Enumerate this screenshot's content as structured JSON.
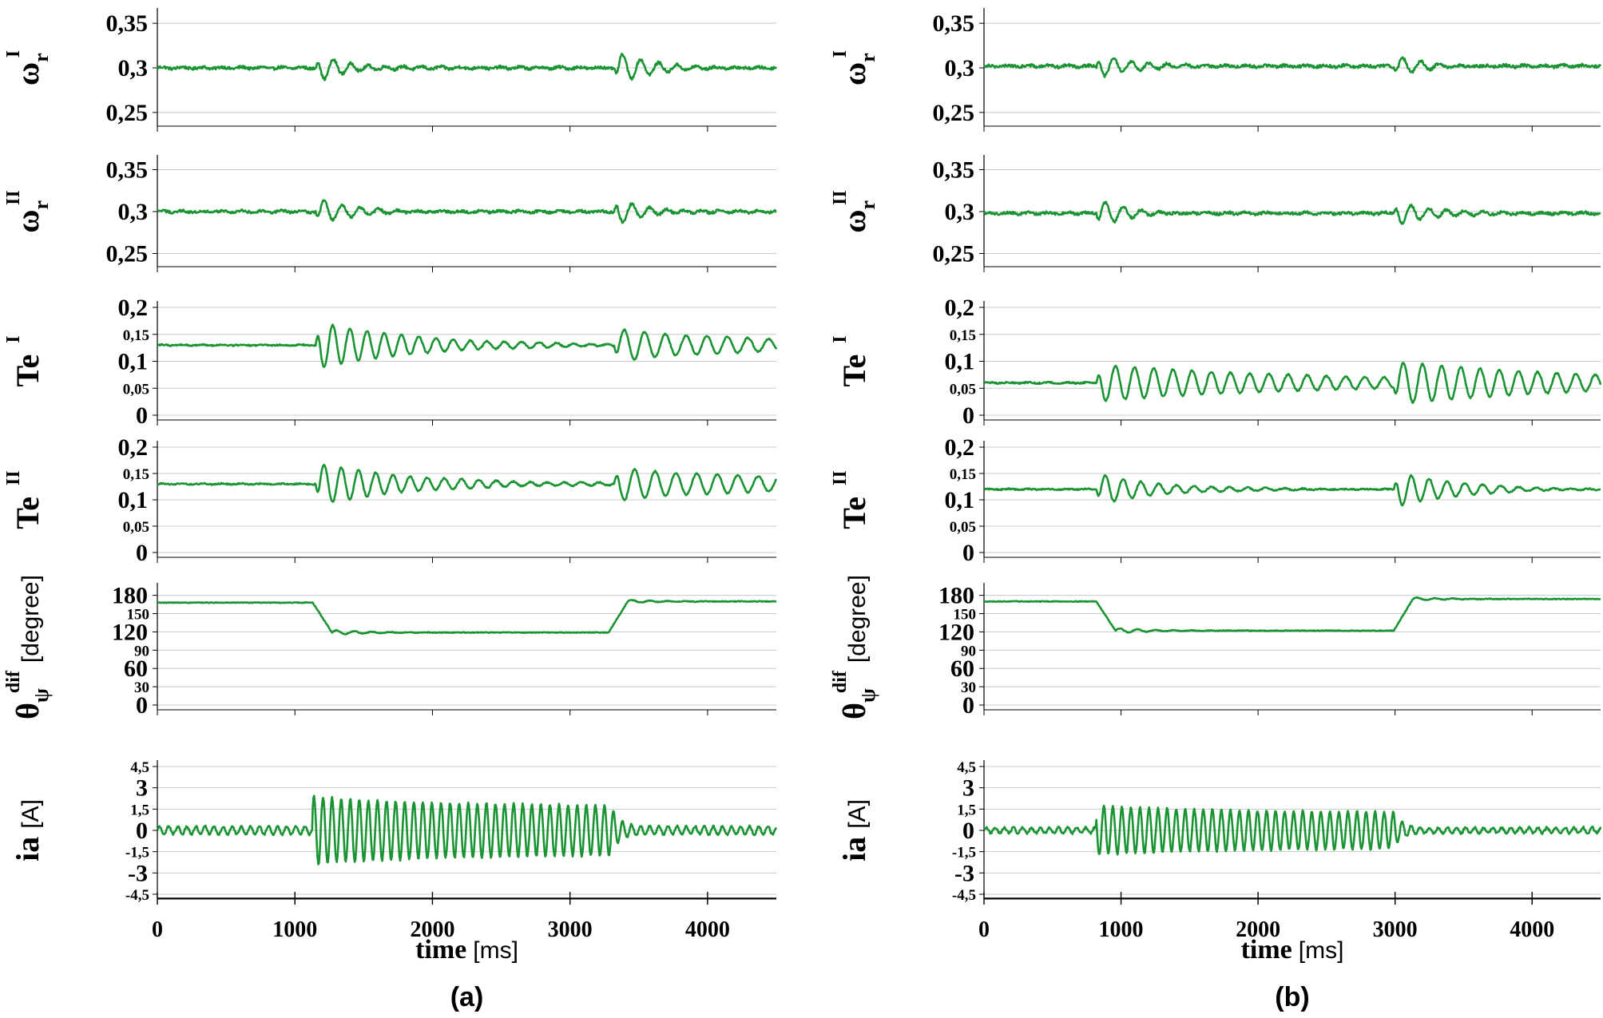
{
  "chart_data": [
    {
      "id": "a",
      "type": "line",
      "caption": "(a)",
      "xlabel": "time",
      "xunit": "[ms]",
      "xlim": [
        0,
        4500
      ],
      "xticks": [
        "0",
        "1000",
        "2000",
        "3000",
        "4000"
      ],
      "line_color": "#1a9433",
      "subplots": [
        {
          "name": "omega-r-I",
          "ylabel": {
            "main": "ω",
            "sub": "r",
            "sup": "I"
          },
          "ylim": [
            0.24,
            0.36
          ],
          "ticks": [
            {
              "v": 0.35,
              "t": "0,35",
              "size": "big"
            },
            {
              "v": 0.3,
              "t": "0,3",
              "size": "big"
            },
            {
              "v": 0.25,
              "t": "0,25",
              "size": "big"
            }
          ],
          "series": {
            "name": "ωrI",
            "baseline": 0.3,
            "noise": 0.0016,
            "events": [
              {
                "t": 1150,
                "kind": "osc",
                "amp": 0.017,
                "period": 130,
                "decay": 240
              },
              {
                "t": 3320,
                "kind": "osc",
                "amp": -0.019,
                "period": 130,
                "decay": 240
              }
            ]
          }
        },
        {
          "name": "omega-r-II",
          "ylabel": {
            "main": "ω",
            "sub": "r",
            "sup": "II"
          },
          "ylim": [
            0.24,
            0.36
          ],
          "ticks": [
            {
              "v": 0.35,
              "t": "0,35",
              "size": "big"
            },
            {
              "v": 0.3,
              "t": "0,3",
              "size": "big"
            },
            {
              "v": 0.25,
              "t": "0,25",
              "size": "big"
            }
          ],
          "series": {
            "name": "ωrII",
            "baseline": 0.3,
            "noise": 0.0016,
            "events": [
              {
                "t": 1150,
                "kind": "osc",
                "amp": -0.016,
                "period": 130,
                "decay": 240
              },
              {
                "t": 3320,
                "kind": "osc",
                "amp": 0.017,
                "period": 130,
                "decay": 240
              }
            ]
          }
        },
        {
          "name": "te-I",
          "ylabel": {
            "main": "Te",
            "sub": "",
            "sup": "I"
          },
          "ylim": [
            0,
            0.2
          ],
          "ticks": [
            {
              "v": 0.2,
              "t": "0,2",
              "size": "big"
            },
            {
              "v": 0.15,
              "t": "0,15",
              "size": "small"
            },
            {
              "v": 0.1,
              "t": "0,1",
              "size": "big"
            },
            {
              "v": 0.05,
              "t": "0,05",
              "size": "small"
            },
            {
              "v": 0,
              "t": "0",
              "size": "big"
            }
          ],
          "series": {
            "name": "TeI",
            "baseline": 0.13,
            "noise": 0.0012,
            "events": [
              {
                "t": 1150,
                "kind": "osc",
                "amp": 0.045,
                "period": 125,
                "decay": 700
              },
              {
                "t": 3320,
                "kind": "osc",
                "amp": -0.028,
                "period": 150,
                "decay": 1400
              }
            ]
          }
        },
        {
          "name": "te-II",
          "ylabel": {
            "main": "Te",
            "sub": "",
            "sup": "II"
          },
          "ylim": [
            0,
            0.2
          ],
          "ticks": [
            {
              "v": 0.2,
              "t": "0,2",
              "size": "big"
            },
            {
              "v": 0.15,
              "t": "0,15",
              "size": "small"
            },
            {
              "v": 0.1,
              "t": "0,1",
              "size": "big"
            },
            {
              "v": 0.05,
              "t": "0,05",
              "size": "small"
            },
            {
              "v": 0,
              "t": "0",
              "size": "big"
            }
          ],
          "series": {
            "name": "TeII",
            "baseline": 0.13,
            "noise": 0.0012,
            "events": [
              {
                "t": 1150,
                "kind": "osc",
                "amp": -0.04,
                "period": 125,
                "decay": 700
              },
              {
                "t": 3320,
                "kind": "osc",
                "amp": 0.03,
                "period": 150,
                "decay": 1400
              }
            ]
          }
        },
        {
          "name": "theta-psi-dif",
          "ylabel": {
            "main": "θ",
            "sub": "ψ",
            "sup": "dif",
            "unit": "[degree]"
          },
          "ylim": [
            0,
            190
          ],
          "ticks": [
            {
              "v": 180,
              "t": "180",
              "size": "big"
            },
            {
              "v": 150,
              "t": "150",
              "size": "small"
            },
            {
              "v": 120,
              "t": "120",
              "size": "big"
            },
            {
              "v": 90,
              "t": "90",
              "size": "small"
            },
            {
              "v": 60,
              "t": "60",
              "size": "big"
            },
            {
              "v": 30,
              "t": "30",
              "size": "small"
            },
            {
              "v": 0,
              "t": "0",
              "size": "big"
            }
          ],
          "series": {
            "name": "θψdif",
            "kind": "step",
            "from": 168,
            "to": 119,
            "back": 170,
            "t1": 1130,
            "t2": 3280,
            "ramp": 140,
            "noise": 0.6,
            "ripple": 4
          }
        },
        {
          "name": "ia",
          "ylabel": {
            "main": "ia",
            "sub": "",
            "sup": "",
            "unit": "[A]"
          },
          "ylim": [
            -4.5,
            4.5
          ],
          "ticks": [
            {
              "v": 4.5,
              "t": "4,5",
              "size": "small"
            },
            {
              "v": 3,
              "t": "3",
              "size": "big"
            },
            {
              "v": 1.5,
              "t": "1,5",
              "size": "small"
            },
            {
              "v": 0,
              "t": "0",
              "size": "big"
            },
            {
              "v": -1.5,
              "t": "-1,5",
              "size": "small"
            },
            {
              "v": -3,
              "t": "-3",
              "size": "big"
            },
            {
              "v": -4.5,
              "t": "-4,5",
              "size": "small"
            }
          ],
          "series": {
            "name": "ia",
            "kind": "current",
            "base_amp": 0.28,
            "burst_amp": 2.4,
            "t1": 1130,
            "t2": 3300,
            "period": 66
          }
        }
      ]
    },
    {
      "id": "b",
      "type": "line",
      "caption": "(b)",
      "xlabel": "time",
      "xunit": "[ms]",
      "xlim": [
        0,
        4500
      ],
      "xticks": [
        "0",
        "1000",
        "2000",
        "3000",
        "4000"
      ],
      "line_color": "#1a9433",
      "subplots": [
        {
          "name": "omega-r-I",
          "ylabel": {
            "main": "ω",
            "sub": "r",
            "sup": "I"
          },
          "ylim": [
            0.24,
            0.36
          ],
          "ticks": [
            {
              "v": 0.35,
              "t": "0,35",
              "size": "big"
            },
            {
              "v": 0.3,
              "t": "0,3",
              "size": "big"
            },
            {
              "v": 0.25,
              "t": "0,25",
              "size": "big"
            }
          ],
          "series": {
            "name": "ωrI",
            "baseline": 0.302,
            "noise": 0.0016,
            "events": [
              {
                "t": 820,
                "kind": "osc",
                "amp": 0.015,
                "period": 130,
                "decay": 240
              },
              {
                "t": 2990,
                "kind": "osc",
                "amp": -0.011,
                "period": 130,
                "decay": 240
              }
            ]
          }
        },
        {
          "name": "omega-r-II",
          "ylabel": {
            "main": "ω",
            "sub": "r",
            "sup": "II"
          },
          "ylim": [
            0.24,
            0.36
          ],
          "ticks": [
            {
              "v": 0.35,
              "t": "0,35",
              "size": "big"
            },
            {
              "v": 0.3,
              "t": "0,3",
              "size": "big"
            },
            {
              "v": 0.25,
              "t": "0,25",
              "size": "big"
            }
          ],
          "series": {
            "name": "ωrII",
            "baseline": 0.298,
            "noise": 0.0016,
            "events": [
              {
                "t": 820,
                "kind": "osc",
                "amp": -0.016,
                "period": 130,
                "decay": 240
              },
              {
                "t": 2990,
                "kind": "osc",
                "amp": 0.017,
                "period": 130,
                "decay": 240
              }
            ]
          }
        },
        {
          "name": "te-I",
          "ylabel": {
            "main": "Te",
            "sub": "",
            "sup": "I"
          },
          "ylim": [
            0,
            0.2
          ],
          "ticks": [
            {
              "v": 0.2,
              "t": "0,2",
              "size": "big"
            },
            {
              "v": 0.15,
              "t": "0,15",
              "size": "small"
            },
            {
              "v": 0.1,
              "t": "0,1",
              "size": "big"
            },
            {
              "v": 0.05,
              "t": "0,05",
              "size": "small"
            },
            {
              "v": 0,
              "t": "0",
              "size": "big"
            }
          ],
          "series": {
            "name": "TeI",
            "baseline": 0.06,
            "noise": 0.0013,
            "events": [
              {
                "t": 820,
                "kind": "osc",
                "amp": 0.035,
                "period": 140,
                "decay": 1600
              },
              {
                "t": 2990,
                "kind": "osc",
                "amp": -0.03,
                "period": 140,
                "decay": 1600
              }
            ]
          }
        },
        {
          "name": "te-II",
          "ylabel": {
            "main": "Te",
            "sub": "",
            "sup": "II"
          },
          "ylim": [
            0,
            0.2
          ],
          "ticks": [
            {
              "v": 0.2,
              "t": "0,2",
              "size": "big"
            },
            {
              "v": 0.15,
              "t": "0,15",
              "size": "small"
            },
            {
              "v": 0.1,
              "t": "0,1",
              "size": "big"
            },
            {
              "v": 0.05,
              "t": "0,05",
              "size": "small"
            },
            {
              "v": 0,
              "t": "0",
              "size": "big"
            }
          ],
          "series": {
            "name": "TeII",
            "baseline": 0.12,
            "noise": 0.0012,
            "events": [
              {
                "t": 820,
                "kind": "osc",
                "amp": -0.03,
                "period": 130,
                "decay": 450
              },
              {
                "t": 2990,
                "kind": "osc",
                "amp": 0.035,
                "period": 130,
                "decay": 450
              }
            ]
          }
        },
        {
          "name": "theta-psi-dif",
          "ylabel": {
            "main": "θ",
            "sub": "ψ",
            "sup": "dif",
            "unit": "[degree]"
          },
          "ylim": [
            0,
            190
          ],
          "ticks": [
            {
              "v": 180,
              "t": "180",
              "size": "big"
            },
            {
              "v": 150,
              "t": "150",
              "size": "small"
            },
            {
              "v": 120,
              "t": "120",
              "size": "big"
            },
            {
              "v": 90,
              "t": "90",
              "size": "small"
            },
            {
              "v": 60,
              "t": "60",
              "size": "big"
            },
            {
              "v": 30,
              "t": "30",
              "size": "small"
            },
            {
              "v": 0,
              "t": "0",
              "size": "big"
            }
          ],
          "series": {
            "name": "θψdif",
            "kind": "step",
            "from": 170,
            "to": 122,
            "back": 174,
            "t1": 820,
            "t2": 2990,
            "ramp": 140,
            "noise": 0.6,
            "ripple": 4
          }
        },
        {
          "name": "ia",
          "ylabel": {
            "main": "ia",
            "sub": "",
            "sup": "",
            "unit": "[A]"
          },
          "ylim": [
            -4.5,
            4.5
          ],
          "ticks": [
            {
              "v": 4.5,
              "t": "4,5",
              "size": "small"
            },
            {
              "v": 3,
              "t": "3",
              "size": "big"
            },
            {
              "v": 1.5,
              "t": "1,5",
              "size": "small"
            },
            {
              "v": 0,
              "t": "0",
              "size": "big"
            },
            {
              "v": -1.5,
              "t": "-1,5",
              "size": "small"
            },
            {
              "v": -3,
              "t": "-3",
              "size": "big"
            },
            {
              "v": -4.5,
              "t": "-4,5",
              "size": "small"
            }
          ],
          "series": {
            "name": "ia",
            "kind": "current",
            "base_amp": 0.2,
            "burst_amp": 1.75,
            "t1": 820,
            "t2": 2990,
            "period": 66
          }
        }
      ]
    }
  ]
}
